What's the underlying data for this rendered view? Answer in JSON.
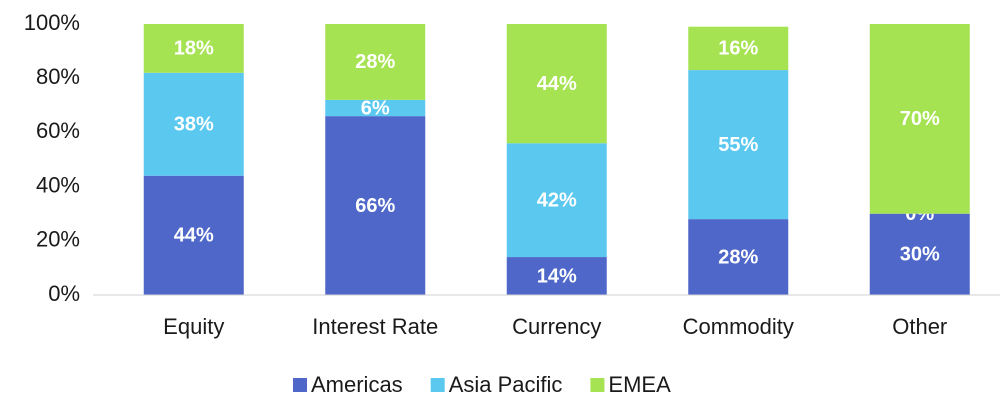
{
  "chart_data": {
    "type": "stacked_bar_100",
    "categories": [
      "Equity",
      "Interest Rate",
      "Currency",
      "Commodity",
      "Other"
    ],
    "series": [
      {
        "name": "Americas",
        "color": "#4f67c9",
        "values": [
          44,
          66,
          14,
          28,
          30
        ],
        "value_labels": [
          "44%",
          "66%",
          "14%",
          "28%",
          "30%"
        ]
      },
      {
        "name": "Asia Pacific",
        "color": "#5bc8f0",
        "values": [
          38,
          6,
          42,
          55,
          0
        ],
        "value_labels": [
          "38%",
          "6%",
          "42%",
          "55%",
          "0%"
        ]
      },
      {
        "name": "EMEA",
        "color": "#a6e352",
        "values": [
          18,
          28,
          44,
          16,
          70
        ],
        "value_labels": [
          "18%",
          "28%",
          "44%",
          "16%",
          "70%"
        ]
      }
    ],
    "ylim": [
      0,
      100
    ],
    "yticks": [
      {
        "value": 0,
        "label": "0%"
      },
      {
        "value": 20,
        "label": "20%"
      },
      {
        "value": 40,
        "label": "40%"
      },
      {
        "value": 60,
        "label": "60%"
      },
      {
        "value": 80,
        "label": "80%"
      },
      {
        "value": 100,
        "label": "100%"
      }
    ],
    "legend": "bottom"
  }
}
